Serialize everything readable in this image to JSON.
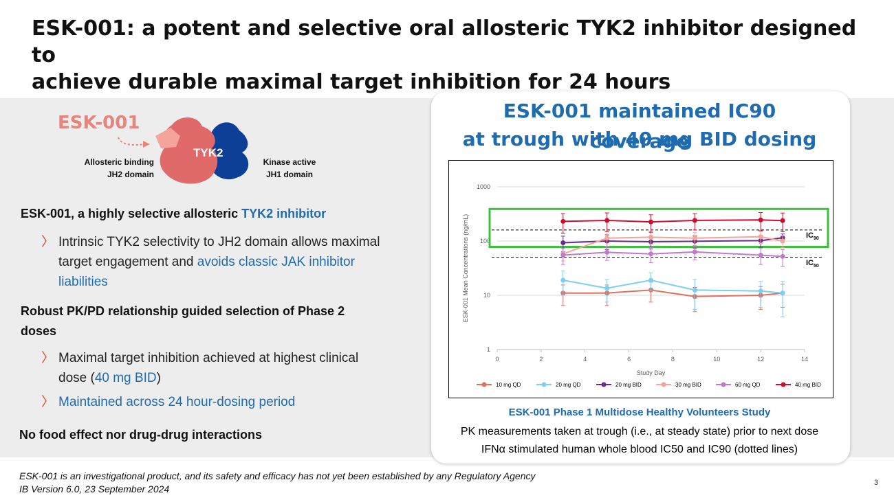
{
  "title": {
    "line1": "ESK-001: a potent and selective oral allosteric TYK2 inhibitor designed to",
    "line2": "achieve durable maximal target inhibition for 24 hours"
  },
  "diagram": {
    "drug_label": "ESK-001",
    "protein_label": "TYK2",
    "allosteric_line1": "Allosteric binding",
    "allosteric_line2": "JH2 domain",
    "kinase_line1": "Kinase active",
    "kinase_line2": "JH1 domain"
  },
  "left": {
    "heading1_a": "ESK-001, a highly selective allosteric ",
    "heading1_b": "TYK2 inhibitor",
    "bullet1_a": "Intrinsic TYK2 selectivity to JH2 domain allows maximal target engagement and ",
    "bullet1_b": "avoids classic JAK inhibitor liabilities",
    "heading2": "Robust PK/PD relationship guided selection of Phase 2 doses",
    "bullet2_a": "Maximal target inhibition achieved at highest clinical dose (",
    "bullet2_b": "40 mg BID",
    "bullet2_c": ")",
    "bullet3": "Maintained across 24 hour-dosing period",
    "heading3": "No food effect nor drug-drug interactions"
  },
  "card": {
    "title_line1": "ESK-001 maintained IC90 coverage",
    "title_line2": "at trough with 40 mg BID dosing",
    "caption_bold": "ESK-001 Phase 1 Multidose Healthy Volunteers Study",
    "caption_line1": "PK measurements taken at trough (i.e., at steady state) prior to next dose",
    "caption_line2": "IFNα stimulated human whole blood IC50 and IC90 (dotted lines)"
  },
  "chart_data": {
    "type": "line",
    "xlabel": "Study Day",
    "ylabel": "ESK-001 Mean Concentrations (ng/mL)",
    "xlim": [
      0,
      14
    ],
    "ylim": [
      1,
      1000
    ],
    "yscale": "log",
    "xticks": [
      "0",
      "2",
      "4",
      "6",
      "8",
      "10",
      "12",
      "14"
    ],
    "yticks": [
      "1",
      "10",
      "100",
      "1000"
    ],
    "reference_lines": [
      {
        "label": "IC",
        "sub": "90",
        "value": 160
      },
      {
        "label": "IC",
        "sub": "50",
        "value": 50
      }
    ],
    "highlight_range": [
      78,
      390
    ],
    "legend_placement": "bottom",
    "series": [
      {
        "name": "10 mg QD",
        "color": "#e07060",
        "x": [
          3,
          5,
          7,
          9,
          12,
          13
        ],
        "y": [
          11,
          11,
          12.5,
          9.5,
          10,
          11
        ],
        "err": [
          4.5,
          4.5,
          5,
          4.5,
          4.5,
          5
        ]
      },
      {
        "name": "20 mg QD",
        "color": "#7dcef0",
        "x": [
          3,
          5,
          7,
          9,
          12,
          13
        ],
        "y": [
          19,
          13.5,
          19,
          12.5,
          12,
          11
        ],
        "err": [
          9,
          6,
          7,
          7,
          6,
          7
        ]
      },
      {
        "name": "20 mg BID",
        "color": "#6a2c8a",
        "x": [
          3,
          5,
          7,
          9,
          12,
          13
        ],
        "y": [
          93,
          100,
          97,
          99,
          102,
          115
        ],
        "err": [
          30,
          30,
          25,
          25,
          25,
          20
        ]
      },
      {
        "name": "30 mg BID",
        "color": "#f4a49a",
        "x": [
          3,
          5,
          7,
          9,
          12,
          13
        ],
        "y": [
          58,
          113,
          118,
          113,
          120,
          100
        ],
        "err": [
          15,
          35,
          30,
          30,
          30,
          25
        ]
      },
      {
        "name": "60 mg QD",
        "color": "#c07ac8",
        "x": [
          3,
          5,
          7,
          9,
          12,
          13
        ],
        "y": [
          55,
          62,
          58,
          63,
          55,
          52
        ],
        "err": [
          18,
          18,
          18,
          18,
          18,
          18
        ]
      },
      {
        "name": "40 mg BID",
        "color": "#c8102e",
        "x": [
          3,
          5,
          7,
          9,
          12,
          13
        ],
        "y": [
          230,
          240,
          225,
          240,
          245,
          238
        ],
        "err": [
          90,
          90,
          80,
          80,
          90,
          90
        ]
      }
    ]
  },
  "footer": {
    "line1": "ESK-001 is an investigational product, and its safety and efficacy has not yet been established by any Regulatory Agency",
    "line2": "IB Version 6.0, 23 September 2024"
  },
  "page_number": "3",
  "colors": {
    "accent_blue": "#1e6bb0",
    "arrow_red": "#d94b2b",
    "drug_salmon": "#e8847c",
    "tyk2_red": "#e06a6a",
    "tyk2_navy": "#0d3f96",
    "highlight_green": "#3cbf3c"
  }
}
